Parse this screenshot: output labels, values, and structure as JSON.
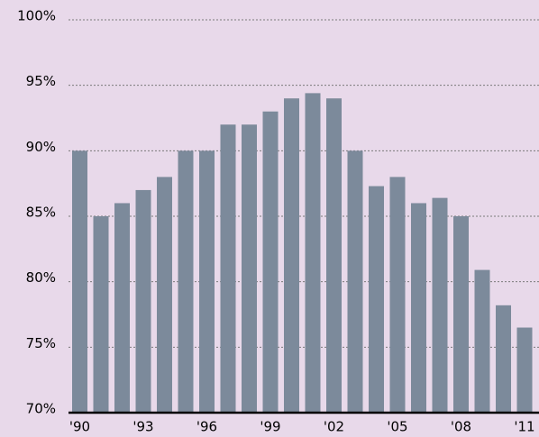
{
  "chart_data": {
    "type": "bar",
    "categories": [
      "'90",
      null,
      null,
      "'93",
      null,
      null,
      "'96",
      null,
      null,
      "'99",
      null,
      null,
      "'02",
      null,
      null,
      "'05",
      null,
      null,
      "'08",
      null,
      null,
      "'11"
    ],
    "values": [
      90,
      85,
      86,
      87,
      88,
      90,
      90,
      92,
      92,
      93,
      94,
      94.4,
      94,
      90,
      87.3,
      88,
      86,
      86.4,
      85,
      80.9,
      78.2,
      76.5
    ],
    "color": "#7c8a9b",
    "ylim": [
      70,
      100
    ],
    "yticks": [
      {
        "value": 70,
        "label": "70%"
      },
      {
        "value": 75,
        "label": "75%"
      },
      {
        "value": 80,
        "label": "80%"
      },
      {
        "value": 85,
        "label": "85%"
      },
      {
        "value": 90,
        "label": "90%"
      },
      {
        "value": 95,
        "label": "95%"
      },
      {
        "value": 100,
        "label": "100%"
      }
    ],
    "grid": true
  }
}
